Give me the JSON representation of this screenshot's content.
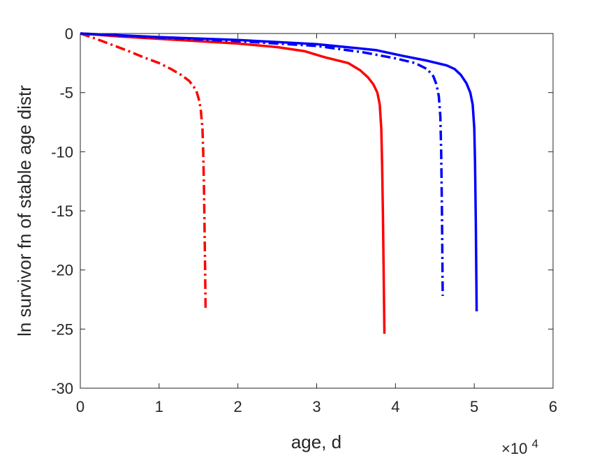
{
  "chart_data": {
    "type": "line",
    "title": "",
    "xlabel": "age, d",
    "ylabel": "ln survivor fn of stable age distr",
    "x_exponent_label": "×10",
    "x_exponent_power": "4",
    "xlim": [
      0,
      60000
    ],
    "ylim": [
      -30,
      0
    ],
    "x_ticks": [
      0,
      10000,
      20000,
      30000,
      40000,
      50000,
      60000
    ],
    "x_tick_labels": [
      "0",
      "1",
      "2",
      "3",
      "4",
      "5",
      "6"
    ],
    "y_ticks": [
      0,
      -5,
      -10,
      -15,
      -20,
      -25,
      -30
    ],
    "y_tick_labels": [
      "0",
      "-5",
      "-10",
      "-15",
      "-20",
      "-25",
      "-30"
    ],
    "grid": false,
    "legend": "none",
    "series": [
      {
        "color": "#ff0000",
        "style": "solid",
        "x": [
          0,
          5000,
          10000,
          15000,
          20000,
          25000,
          28500,
          31000,
          34000,
          35500,
          36500,
          37200,
          37700,
          38000,
          38200,
          38300,
          38400,
          38500,
          38600
        ],
        "y": [
          0,
          -0.25,
          -0.45,
          -0.65,
          -0.85,
          -1.15,
          -1.5,
          -2.0,
          -2.5,
          -3.1,
          -3.7,
          -4.3,
          -5.0,
          -6.0,
          -8.0,
          -11.0,
          -15.0,
          -20.0,
          -25.4
        ]
      },
      {
        "color": "#ff0000",
        "style": "dashdot",
        "x": [
          0,
          2000,
          4000,
          6000,
          8000,
          10000,
          11500,
          12800,
          13800,
          14400,
          14800,
          15100,
          15300,
          15500,
          15600,
          15700,
          15800,
          15900
        ],
        "y": [
          0,
          -0.45,
          -0.95,
          -1.45,
          -2.0,
          -2.5,
          -3.0,
          -3.5,
          -4.0,
          -4.5,
          -5.0,
          -5.7,
          -6.5,
          -8.0,
          -10.0,
          -13.0,
          -18.0,
          -23.2
        ]
      },
      {
        "color": "#0000ff",
        "style": "solid",
        "x": [
          0,
          10000,
          20000,
          30000,
          37500,
          41000,
          44000,
          46500,
          47500,
          48300,
          49000,
          49500,
          49800,
          50000,
          50100,
          50200,
          50300
        ],
        "y": [
          0,
          -0.3,
          -0.55,
          -0.9,
          -1.4,
          -1.9,
          -2.3,
          -2.7,
          -3.0,
          -3.5,
          -4.2,
          -5.0,
          -6.0,
          -8.0,
          -11.0,
          -16.0,
          -23.5
        ]
      },
      {
        "color": "#0000ff",
        "style": "dashdot",
        "x": [
          0,
          10000,
          20000,
          30000,
          36000,
          40000,
          42500,
          44000,
          44800,
          45200,
          45500,
          45700,
          45800,
          45900,
          46000
        ],
        "y": [
          0,
          -0.35,
          -0.65,
          -1.05,
          -1.6,
          -2.1,
          -2.5,
          -3.0,
          -3.6,
          -4.3,
          -5.3,
          -7.0,
          -10.0,
          -15.0,
          -22.2
        ]
      }
    ]
  }
}
